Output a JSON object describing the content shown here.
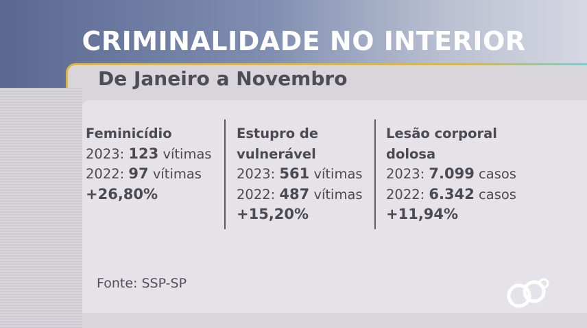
{
  "title": "CRIMINALIDADE NO INTERIOR",
  "subtitle": "De Janeiro a Novembro",
  "stats": [
    {
      "heading": [
        "Feminicídio"
      ],
      "y2023_label": "2023:",
      "y2023_value": "123",
      "y2023_unit": "vítimas",
      "y2022_label": "2022:",
      "y2022_value": "97",
      "y2022_unit": "vítimas",
      "change": "+26,80%"
    },
    {
      "heading": [
        "Estupro de",
        "vulnerável"
      ],
      "y2023_label": "2023:",
      "y2023_value": "561",
      "y2023_unit": "vítimas",
      "y2022_label": "2022:",
      "y2022_value": "487",
      "y2022_unit": "vítimas",
      "change": "+15,20%"
    },
    {
      "heading": [
        "Lesão corporal",
        "dolosa"
      ],
      "y2023_label": "2023:",
      "y2023_value": "7.099",
      "y2023_unit": "casos",
      "y2022_label": "2022:",
      "y2022_value": "6.342",
      "y2022_unit": "casos",
      "change": "+11,94%"
    }
  ],
  "source": "Fonte: SSP-SP",
  "colors": {
    "title_band": "#5a6891",
    "accent_line": "#e0b63a",
    "text": "#4a4a52"
  }
}
